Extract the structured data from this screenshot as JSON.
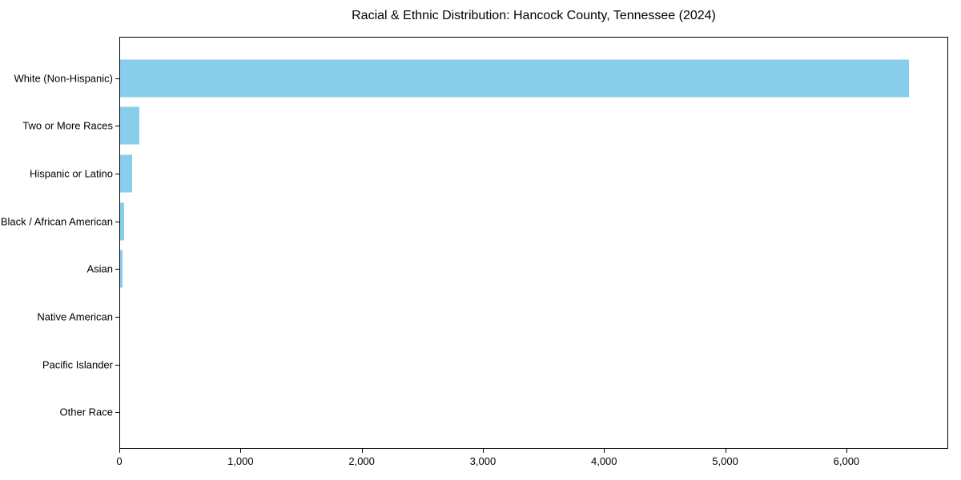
{
  "chart_data": {
    "type": "bar",
    "orientation": "horizontal",
    "title": "Racial & Ethnic Distribution: Hancock County, Tennessee (2024)",
    "categories": [
      "White (Non-Hispanic)",
      "Two or More Races",
      "Hispanic or Latino",
      "Black / African American",
      "Asian",
      "Native American",
      "Pacific Islander",
      "Other Race"
    ],
    "values": [
      6520,
      160,
      100,
      35,
      22,
      0,
      0,
      0
    ],
    "xlabel": "",
    "ylabel": "",
    "xlim": [
      0,
      6840
    ],
    "x_ticks": [
      0,
      1000,
      2000,
      3000,
      4000,
      5000,
      6000
    ],
    "x_tick_labels": [
      "0",
      "1,000",
      "2,000",
      "3,000",
      "4,000",
      "5,000",
      "6,000"
    ],
    "bar_color": "#87CEEB",
    "axis_color": "#000000",
    "background_color": "#ffffff",
    "grid": false,
    "legend": null
  }
}
